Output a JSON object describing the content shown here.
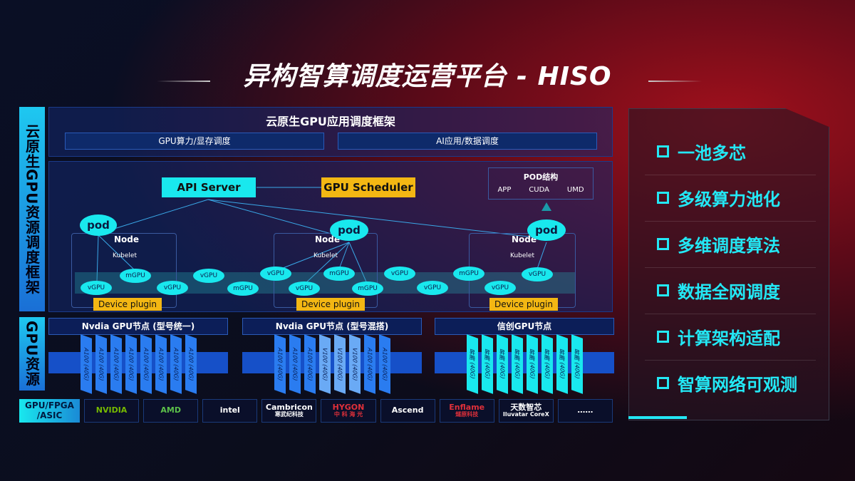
{
  "title": "异构智算调度运营平台 - HISO",
  "left_label": "云原生GPU资源调度框架",
  "gpu_label": "GPU资源",
  "app_framework": {
    "title": "云原生GPU应用调度框架",
    "items": [
      "GPU算力/显存调度",
      "AI应用/数据调度"
    ]
  },
  "diagram": {
    "api_server": "API Server",
    "gpu_scheduler": "GPU Scheduler",
    "pod_structure": {
      "title": "POD结构",
      "items": [
        "APP",
        "CUDA",
        "UMD"
      ]
    },
    "pod": "pod",
    "node": "Node",
    "kubelet": "Kubelet",
    "device_plugin": "Device plugin",
    "vgpu": "vGPU",
    "mgpu": "mGPU"
  },
  "gpu_nodes": [
    {
      "title": "Nvdia GPU节点 (型号统一)",
      "cards": [
        "A100 (40G)",
        "A100 (40G)",
        "A100 (40G)",
        "A100 (40G)",
        "A100 (40G)",
        "A100 (40G)",
        "A100 (40G)",
        "A100 (40G)"
      ],
      "color": "#2a7cf0"
    },
    {
      "title": "Nvdia GPU节点 (型号混搭)",
      "cards": [
        "A100 (40G)",
        "A100 (40G)",
        "A100 (40G)",
        "V100 (40G)",
        "V100 (40G)",
        "V100 (40G)",
        "A100 (40G)",
        "A100 (40G)"
      ],
      "color": "#2a7cf0"
    },
    {
      "title": "信创GPU节点",
      "cards": [
        "昇腾 (40G)",
        "昇腾 (40G)",
        "昇腾 (40G)",
        "昇腾 (40G)",
        "昇腾 (40G)",
        "昇腾 (40G)",
        "昇腾 (40G)",
        "昇腾 (40G)"
      ],
      "color": "#19e8ee"
    }
  ],
  "vendor_label": "GPU/FPGA /ASIC",
  "vendors": [
    {
      "name": "NVIDIA",
      "sub": "",
      "color": "#76b900"
    },
    {
      "name": "AMD",
      "sub": "",
      "color": "#5cc04a"
    },
    {
      "name": "intel",
      "sub": "",
      "color": "#ffffff"
    },
    {
      "name": "Cambricon",
      "sub": "寒武纪科技",
      "color": "#ffffff"
    },
    {
      "name": "HYGON",
      "sub": "中 科 海 光",
      "color": "#e0303a"
    },
    {
      "name": "Ascend",
      "sub": "",
      "color": "#ffffff"
    },
    {
      "name": "Enflame",
      "sub": "燧原科技",
      "color": "#e0303a"
    },
    {
      "name": "天数智芯",
      "sub": "Iluvatar CoreX",
      "color": "#ffffff"
    },
    {
      "name": "……",
      "sub": "",
      "color": "#ffffff"
    }
  ],
  "features": [
    "一池多芯",
    "多级算力池化",
    "多维调度算法",
    "数据全网调度",
    "计算架构适配",
    "智算网络可观测"
  ]
}
